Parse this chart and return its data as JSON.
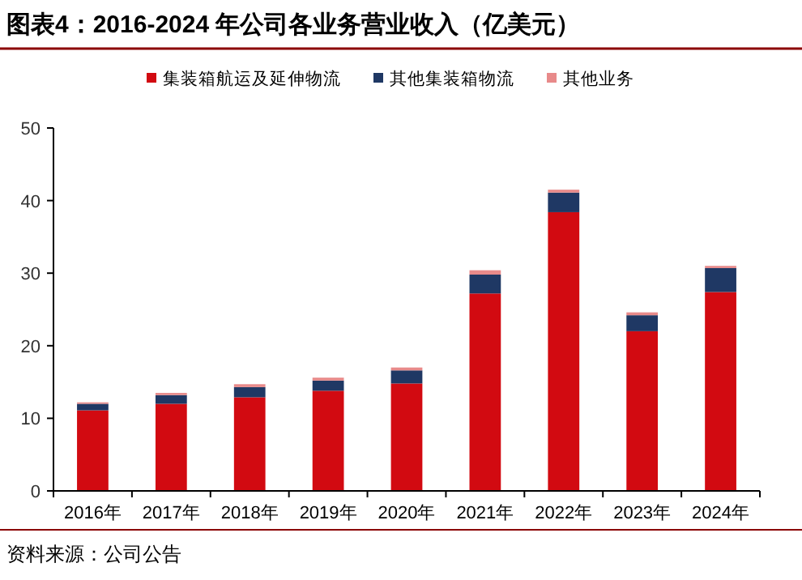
{
  "chart_data": {
    "type": "bar",
    "title": "图表4：2016-2024 年公司各业务营业收入（亿美元）",
    "categories": [
      "2016年",
      "2017年",
      "2018年",
      "2019年",
      "2020年",
      "2021年",
      "2022年",
      "2023年",
      "2024年"
    ],
    "stacked": true,
    "series": [
      {
        "name": "集装箱航运及延伸物流",
        "color": "#d20a11",
        "values": [
          11.1,
          12.0,
          12.9,
          13.8,
          14.8,
          27.2,
          38.4,
          22.0,
          27.4
        ]
      },
      {
        "name": "其他集装箱物流",
        "color": "#1f3864",
        "values": [
          0.9,
          1.2,
          1.4,
          1.4,
          1.8,
          2.6,
          2.7,
          2.2,
          3.3
        ]
      },
      {
        "name": "其他业务",
        "color": "#e88a8a",
        "values": [
          0.2,
          0.3,
          0.4,
          0.4,
          0.4,
          0.6,
          0.4,
          0.4,
          0.3
        ]
      }
    ],
    "ylim": [
      0,
      50
    ],
    "yticks": [
      0,
      10,
      20,
      30,
      40,
      50
    ],
    "grid": false,
    "legend": "top",
    "annotations": [
      "资料来源：公司公告"
    ]
  }
}
